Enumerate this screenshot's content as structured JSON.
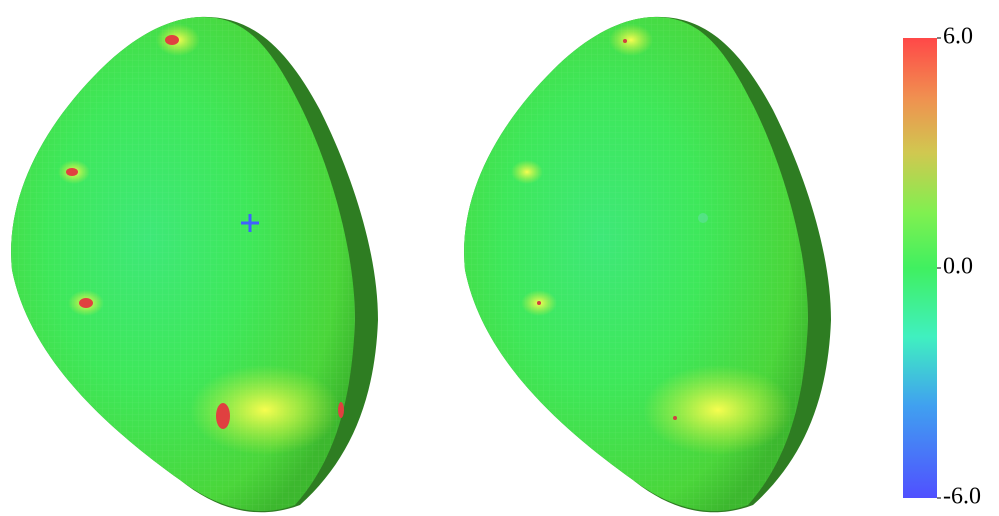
{
  "colorbar": {
    "lim": [
      -6,
      6
    ],
    "ticks": [
      {
        "value": 6,
        "label": "6.0"
      },
      {
        "value": 0,
        "label": "0.0"
      },
      {
        "value": -6,
        "label": "-6.0"
      }
    ]
  }
}
